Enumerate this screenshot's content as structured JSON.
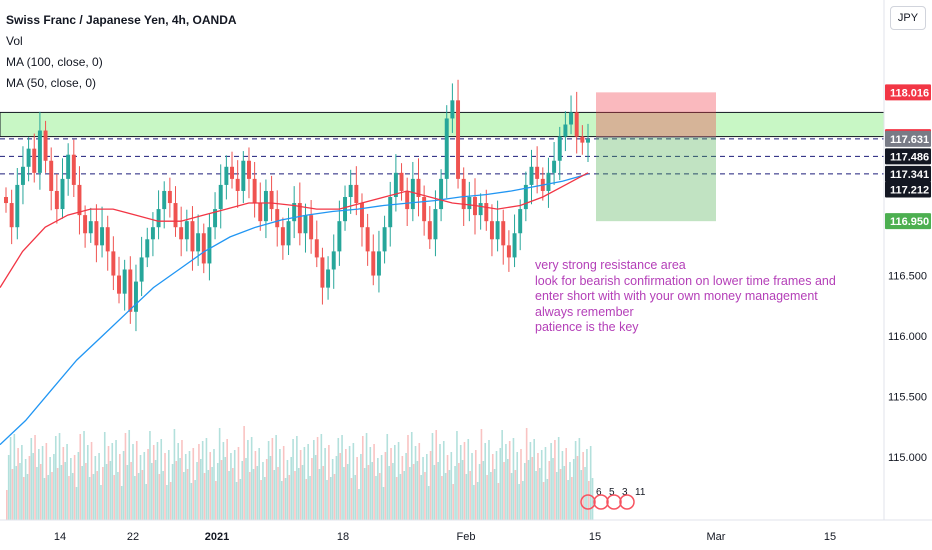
{
  "chart_data": {
    "type": "candlestick",
    "title": "Swiss Franc / Japanese Yen, 4h, OANDA",
    "currency": "JPY",
    "ylim": [
      114.75,
      118.35
    ],
    "y_ticks": [
      115.0,
      115.5,
      116.0,
      116.5
    ],
    "x_ticks": [
      "14",
      "22",
      "2021",
      "18",
      "Feb",
      "15",
      "Mar",
      "15"
    ],
    "legend": [
      "Vol",
      "MA (100, close, 0)",
      "MA (50, close, 0)"
    ],
    "price_labels": [
      {
        "text": "118.016",
        "value": 118.016,
        "color": "#f23645",
        "kind": "stop"
      },
      {
        "text": "117.646",
        "value": 117.646,
        "color": "#f23645",
        "kind": "entry"
      },
      {
        "text": "117.631",
        "value": 117.631,
        "color": "#787b86",
        "kind": "last"
      },
      {
        "text": "117.486",
        "value": 117.486,
        "color": "#131722",
        "kind": "level"
      },
      {
        "text": "117.341",
        "value": 117.341,
        "color": "#131722",
        "kind": "level"
      },
      {
        "text": "117.212",
        "value": 117.212,
        "color": "#131722",
        "kind": "level"
      },
      {
        "text": "116.950",
        "value": 116.95,
        "color": "#4caf50",
        "kind": "target"
      }
    ],
    "resistance_zone": [
      117.65,
      117.85
    ],
    "dashed_levels": [
      117.631,
      117.486,
      117.341
    ],
    "position": {
      "entry": 117.646,
      "stop": 118.016,
      "target": 116.95
    },
    "closes": [
      117.1,
      116.9,
      117.25,
      117.4,
      117.55,
      117.35,
      117.7,
      117.45,
      117.2,
      117.05,
      117.3,
      117.5,
      117.25,
      117.0,
      116.85,
      116.95,
      116.75,
      116.9,
      116.7,
      116.5,
      116.35,
      116.55,
      116.2,
      116.45,
      116.65,
      116.8,
      116.9,
      117.05,
      117.2,
      117.1,
      116.9,
      116.8,
      116.95,
      116.7,
      116.85,
      116.6,
      116.9,
      117.05,
      117.25,
      117.4,
      117.3,
      117.2,
      117.45,
      117.3,
      117.1,
      116.95,
      117.2,
      117.05,
      116.9,
      116.75,
      116.95,
      117.1,
      116.85,
      117.0,
      116.8,
      116.65,
      116.4,
      116.55,
      116.7,
      116.95,
      117.15,
      117.25,
      117.1,
      116.9,
      116.7,
      116.5,
      116.7,
      116.9,
      117.15,
      117.35,
      117.2,
      117.05,
      117.3,
      117.15,
      116.95,
      116.8,
      117.05,
      117.3,
      117.8,
      117.95,
      117.3,
      117.05,
      117.15,
      117.0,
      117.1,
      116.95,
      116.8,
      116.95,
      116.75,
      116.65,
      116.85,
      117.05,
      117.25,
      117.4,
      117.3,
      117.2,
      117.35,
      117.45,
      117.65,
      117.75,
      117.85,
      117.65,
      117.6,
      117.63
    ],
    "ma100": [
      115.1,
      115.3,
      115.55,
      115.8,
      116.0,
      116.2,
      116.4,
      116.55,
      116.7,
      116.82,
      116.9,
      116.96,
      117.0,
      117.03,
      117.05,
      117.08,
      117.1,
      117.12,
      117.15,
      117.17,
      117.2,
      117.24,
      117.28,
      117.34
    ],
    "ma50": [
      116.4,
      116.7,
      116.9,
      117.0,
      117.05,
      117.05,
      117.0,
      116.95,
      116.95,
      117.0,
      117.05,
      117.1,
      117.1,
      117.08,
      117.05,
      117.05,
      117.1,
      117.15,
      117.2,
      117.15,
      117.1,
      117.08,
      117.05,
      117.08,
      117.15,
      117.25,
      117.35
    ]
  },
  "annotation": [
    "very strong resistance area",
    "look for bearish confirmation on lower time frames and",
    "enter short with with your own money management",
    "always remember",
    "patience is the key"
  ],
  "events_badge": [
    "6",
    "5",
    "3",
    "11"
  ],
  "colors": {
    "up": "#26a69a",
    "down": "#ef5350",
    "ma100": "#2196f3",
    "ma50": "#f23645",
    "annotation": "#b43fb8"
  }
}
